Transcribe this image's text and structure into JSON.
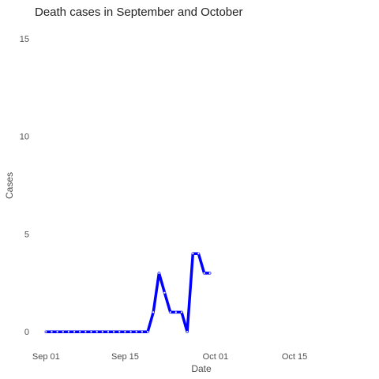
{
  "chart_data": {
    "type": "line",
    "title": "Death cases in September and October",
    "xlabel": "Date",
    "ylabel": "Cases",
    "xlim": [
      "2020-08-30",
      "2020-10-28"
    ],
    "ylim": [
      -0.8,
      15.8
    ],
    "grid": false,
    "x_ticks": [
      {
        "date": "2020-09-01",
        "label": "Sep 01"
      },
      {
        "date": "2020-09-15",
        "label": "Sep 15"
      },
      {
        "date": "2020-10-01",
        "label": "Oct 01"
      },
      {
        "date": "2020-10-15",
        "label": "Oct 15"
      }
    ],
    "y_ticks": [
      0,
      5,
      10,
      15
    ],
    "series": [
      {
        "color": "#0000ff",
        "x": [
          "2020-09-01",
          "2020-09-02",
          "2020-09-03",
          "2020-09-04",
          "2020-09-05",
          "2020-09-06",
          "2020-09-07",
          "2020-09-08",
          "2020-09-09",
          "2020-09-10",
          "2020-09-11",
          "2020-09-12",
          "2020-09-13",
          "2020-09-14",
          "2020-09-15",
          "2020-09-16",
          "2020-09-17",
          "2020-09-18",
          "2020-09-19",
          "2020-09-20",
          "2020-09-21",
          "2020-09-22",
          "2020-09-23",
          "2020-09-24",
          "2020-09-25",
          "2020-09-26",
          "2020-09-27",
          "2020-09-28",
          "2020-09-29",
          "2020-09-30"
        ],
        "y": [
          0,
          0,
          0,
          0,
          0,
          0,
          0,
          0,
          0,
          0,
          0,
          0,
          0,
          0,
          0,
          0,
          0,
          0,
          0,
          1,
          3,
          2,
          1,
          1,
          1,
          0,
          4,
          4,
          3,
          3
        ]
      }
    ]
  }
}
